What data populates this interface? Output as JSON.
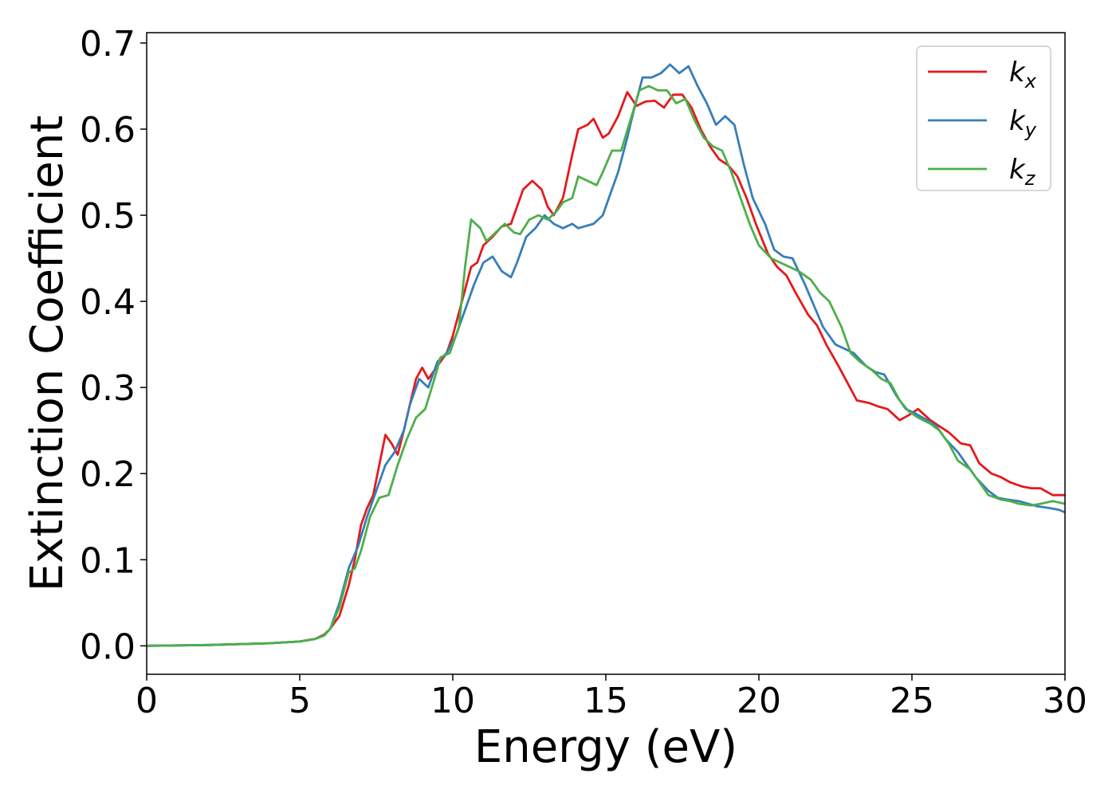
{
  "chart_data": {
    "type": "line",
    "title": "",
    "xlabel": "Energy (eV)",
    "ylabel": "Extinction Coefficient",
    "xlim": [
      0,
      30
    ],
    "ylim": [
      -0.033,
      0.712
    ],
    "xticks": [
      0,
      5,
      10,
      15,
      20,
      25,
      30
    ],
    "yticks": [
      0.0,
      0.1,
      0.2,
      0.3,
      0.4,
      0.5,
      0.6,
      0.7
    ],
    "xtick_labels": [
      "0",
      "5",
      "10",
      "15",
      "20",
      "25",
      "30"
    ],
    "ytick_labels": [
      "0.0",
      "0.1",
      "0.2",
      "0.3",
      "0.4",
      "0.5",
      "0.6",
      "0.7"
    ],
    "grid": false,
    "legend_position": "top-right",
    "series": [
      {
        "name": "k",
        "subscript": "x",
        "color": "#e41a1c",
        "points": [
          [
            0,
            0.0
          ],
          [
            2,
            0.001
          ],
          [
            4,
            0.003
          ],
          [
            5,
            0.005
          ],
          [
            5.5,
            0.008
          ],
          [
            5.8,
            0.013
          ],
          [
            6,
            0.02
          ],
          [
            6.3,
            0.035
          ],
          [
            6.6,
            0.07
          ],
          [
            6.8,
            0.1
          ],
          [
            7,
            0.14
          ],
          [
            7.2,
            0.16
          ],
          [
            7.4,
            0.175
          ],
          [
            7.6,
            0.21
          ],
          [
            7.8,
            0.245
          ],
          [
            8.0,
            0.235
          ],
          [
            8.2,
            0.222
          ],
          [
            8.4,
            0.25
          ],
          [
            8.6,
            0.28
          ],
          [
            8.8,
            0.31
          ],
          [
            9.0,
            0.323
          ],
          [
            9.2,
            0.31
          ],
          [
            9.4,
            0.32
          ],
          [
            9.6,
            0.33
          ],
          [
            9.8,
            0.34
          ],
          [
            10.0,
            0.36
          ],
          [
            10.3,
            0.4
          ],
          [
            10.6,
            0.44
          ],
          [
            10.8,
            0.445
          ],
          [
            11.0,
            0.465
          ],
          [
            11.3,
            0.475
          ],
          [
            11.6,
            0.487
          ],
          [
            11.9,
            0.49
          ],
          [
            12.1,
            0.51
          ],
          [
            12.3,
            0.53
          ],
          [
            12.6,
            0.54
          ],
          [
            12.9,
            0.53
          ],
          [
            13.1,
            0.51
          ],
          [
            13.3,
            0.5
          ],
          [
            13.6,
            0.52
          ],
          [
            13.9,
            0.57
          ],
          [
            14.1,
            0.6
          ],
          [
            14.4,
            0.605
          ],
          [
            14.6,
            0.612
          ],
          [
            14.9,
            0.59
          ],
          [
            15.1,
            0.595
          ],
          [
            15.4,
            0.615
          ],
          [
            15.7,
            0.643
          ],
          [
            16.0,
            0.627
          ],
          [
            16.3,
            0.632
          ],
          [
            16.6,
            0.633
          ],
          [
            16.9,
            0.625
          ],
          [
            17.2,
            0.64
          ],
          [
            17.5,
            0.64
          ],
          [
            17.8,
            0.625
          ],
          [
            18.1,
            0.6
          ],
          [
            18.4,
            0.58
          ],
          [
            18.7,
            0.565
          ],
          [
            19.0,
            0.558
          ],
          [
            19.3,
            0.545
          ],
          [
            19.6,
            0.52
          ],
          [
            19.9,
            0.49
          ],
          [
            20.3,
            0.455
          ],
          [
            20.6,
            0.44
          ],
          [
            20.9,
            0.43
          ],
          [
            21.2,
            0.41
          ],
          [
            21.6,
            0.385
          ],
          [
            21.9,
            0.372
          ],
          [
            22.2,
            0.35
          ],
          [
            22.6,
            0.325
          ],
          [
            22.9,
            0.305
          ],
          [
            23.2,
            0.285
          ],
          [
            23.6,
            0.282
          ],
          [
            23.9,
            0.278
          ],
          [
            24.2,
            0.275
          ],
          [
            24.6,
            0.262
          ],
          [
            24.9,
            0.268
          ],
          [
            25.2,
            0.275
          ],
          [
            25.6,
            0.262
          ],
          [
            25.9,
            0.255
          ],
          [
            26.2,
            0.248
          ],
          [
            26.6,
            0.235
          ],
          [
            26.9,
            0.233
          ],
          [
            27.2,
            0.212
          ],
          [
            27.6,
            0.2
          ],
          [
            27.9,
            0.196
          ],
          [
            28.2,
            0.19
          ],
          [
            28.6,
            0.185
          ],
          [
            28.9,
            0.183
          ],
          [
            29.2,
            0.183
          ],
          [
            29.6,
            0.175
          ],
          [
            30,
            0.175
          ]
        ]
      },
      {
        "name": "k",
        "subscript": "y",
        "color": "#377eb8",
        "points": [
          [
            0,
            0.0
          ],
          [
            2,
            0.001
          ],
          [
            4,
            0.003
          ],
          [
            5,
            0.005
          ],
          [
            5.5,
            0.008
          ],
          [
            5.8,
            0.012
          ],
          [
            6,
            0.02
          ],
          [
            6.3,
            0.05
          ],
          [
            6.6,
            0.09
          ],
          [
            6.9,
            0.115
          ],
          [
            7.2,
            0.15
          ],
          [
            7.5,
            0.18
          ],
          [
            7.8,
            0.21
          ],
          [
            8.1,
            0.225
          ],
          [
            8.4,
            0.25
          ],
          [
            8.6,
            0.28
          ],
          [
            8.9,
            0.31
          ],
          [
            9.2,
            0.3
          ],
          [
            9.5,
            0.33
          ],
          [
            9.8,
            0.34
          ],
          [
            10.1,
            0.36
          ],
          [
            10.4,
            0.39
          ],
          [
            10.7,
            0.42
          ],
          [
            11.0,
            0.445
          ],
          [
            11.3,
            0.452
          ],
          [
            11.6,
            0.435
          ],
          [
            11.9,
            0.428
          ],
          [
            12.1,
            0.445
          ],
          [
            12.4,
            0.475
          ],
          [
            12.7,
            0.485
          ],
          [
            13.0,
            0.5
          ],
          [
            13.3,
            0.49
          ],
          [
            13.6,
            0.485
          ],
          [
            13.9,
            0.49
          ],
          [
            14.1,
            0.485
          ],
          [
            14.4,
            0.488
          ],
          [
            14.6,
            0.49
          ],
          [
            14.9,
            0.5
          ],
          [
            15.1,
            0.52
          ],
          [
            15.4,
            0.55
          ],
          [
            15.7,
            0.59
          ],
          [
            15.9,
            0.62
          ],
          [
            16.2,
            0.66
          ],
          [
            16.5,
            0.66
          ],
          [
            16.8,
            0.665
          ],
          [
            17.1,
            0.675
          ],
          [
            17.4,
            0.665
          ],
          [
            17.7,
            0.673
          ],
          [
            18.0,
            0.65
          ],
          [
            18.3,
            0.63
          ],
          [
            18.6,
            0.605
          ],
          [
            18.9,
            0.615
          ],
          [
            19.2,
            0.605
          ],
          [
            19.5,
            0.56
          ],
          [
            19.8,
            0.52
          ],
          [
            20.2,
            0.49
          ],
          [
            20.5,
            0.46
          ],
          [
            20.8,
            0.452
          ],
          [
            21.1,
            0.45
          ],
          [
            21.5,
            0.42
          ],
          [
            21.8,
            0.395
          ],
          [
            22.1,
            0.37
          ],
          [
            22.5,
            0.35
          ],
          [
            22.8,
            0.345
          ],
          [
            23.1,
            0.34
          ],
          [
            23.5,
            0.325
          ],
          [
            23.8,
            0.318
          ],
          [
            24.1,
            0.315
          ],
          [
            24.5,
            0.29
          ],
          [
            24.8,
            0.275
          ],
          [
            25.1,
            0.27
          ],
          [
            25.5,
            0.262
          ],
          [
            25.8,
            0.255
          ],
          [
            26.1,
            0.24
          ],
          [
            26.5,
            0.225
          ],
          [
            26.8,
            0.21
          ],
          [
            27.1,
            0.195
          ],
          [
            27.5,
            0.18
          ],
          [
            27.8,
            0.172
          ],
          [
            28.1,
            0.17
          ],
          [
            28.5,
            0.168
          ],
          [
            28.8,
            0.165
          ],
          [
            29.1,
            0.162
          ],
          [
            29.5,
            0.16
          ],
          [
            29.8,
            0.158
          ],
          [
            30,
            0.155
          ]
        ]
      },
      {
        "name": "k",
        "subscript": "z",
        "color": "#4daf4a",
        "points": [
          [
            0,
            0.0
          ],
          [
            2,
            0.001
          ],
          [
            4,
            0.003
          ],
          [
            5,
            0.005
          ],
          [
            5.5,
            0.008
          ],
          [
            5.8,
            0.012
          ],
          [
            6,
            0.02
          ],
          [
            6.3,
            0.045
          ],
          [
            6.6,
            0.085
          ],
          [
            6.8,
            0.09
          ],
          [
            7.0,
            0.11
          ],
          [
            7.3,
            0.15
          ],
          [
            7.6,
            0.172
          ],
          [
            7.9,
            0.175
          ],
          [
            8.2,
            0.21
          ],
          [
            8.5,
            0.24
          ],
          [
            8.8,
            0.265
          ],
          [
            9.1,
            0.275
          ],
          [
            9.4,
            0.31
          ],
          [
            9.6,
            0.335
          ],
          [
            9.9,
            0.34
          ],
          [
            10.2,
            0.37
          ],
          [
            10.4,
            0.44
          ],
          [
            10.6,
            0.495
          ],
          [
            10.9,
            0.485
          ],
          [
            11.1,
            0.47
          ],
          [
            11.4,
            0.48
          ],
          [
            11.7,
            0.49
          ],
          [
            12.0,
            0.48
          ],
          [
            12.2,
            0.478
          ],
          [
            12.5,
            0.495
          ],
          [
            12.8,
            0.5
          ],
          [
            13.1,
            0.495
          ],
          [
            13.4,
            0.505
          ],
          [
            13.6,
            0.515
          ],
          [
            13.9,
            0.52
          ],
          [
            14.1,
            0.545
          ],
          [
            14.4,
            0.54
          ],
          [
            14.7,
            0.535
          ],
          [
            14.9,
            0.55
          ],
          [
            15.2,
            0.575
          ],
          [
            15.5,
            0.575
          ],
          [
            15.8,
            0.61
          ],
          [
            16.1,
            0.645
          ],
          [
            16.4,
            0.65
          ],
          [
            16.7,
            0.645
          ],
          [
            17.0,
            0.645
          ],
          [
            17.3,
            0.63
          ],
          [
            17.6,
            0.635
          ],
          [
            17.9,
            0.61
          ],
          [
            18.2,
            0.59
          ],
          [
            18.5,
            0.58
          ],
          [
            18.8,
            0.575
          ],
          [
            19.1,
            0.55
          ],
          [
            19.4,
            0.52
          ],
          [
            19.7,
            0.49
          ],
          [
            20.0,
            0.465
          ],
          [
            20.4,
            0.45
          ],
          [
            20.7,
            0.445
          ],
          [
            21.0,
            0.44
          ],
          [
            21.3,
            0.435
          ],
          [
            21.7,
            0.425
          ],
          [
            22.0,
            0.41
          ],
          [
            22.3,
            0.4
          ],
          [
            22.7,
            0.37
          ],
          [
            23.0,
            0.34
          ],
          [
            23.3,
            0.33
          ],
          [
            23.7,
            0.32
          ],
          [
            24.0,
            0.31
          ],
          [
            24.3,
            0.305
          ],
          [
            24.6,
            0.285
          ],
          [
            24.9,
            0.272
          ],
          [
            25.2,
            0.265
          ],
          [
            25.6,
            0.258
          ],
          [
            25.9,
            0.25
          ],
          [
            26.2,
            0.235
          ],
          [
            26.5,
            0.215
          ],
          [
            26.9,
            0.205
          ],
          [
            27.2,
            0.19
          ],
          [
            27.5,
            0.175
          ],
          [
            27.9,
            0.17
          ],
          [
            28.2,
            0.168
          ],
          [
            28.5,
            0.165
          ],
          [
            28.9,
            0.163
          ],
          [
            29.2,
            0.165
          ],
          [
            29.6,
            0.168
          ],
          [
            30,
            0.165
          ]
        ]
      }
    ]
  }
}
